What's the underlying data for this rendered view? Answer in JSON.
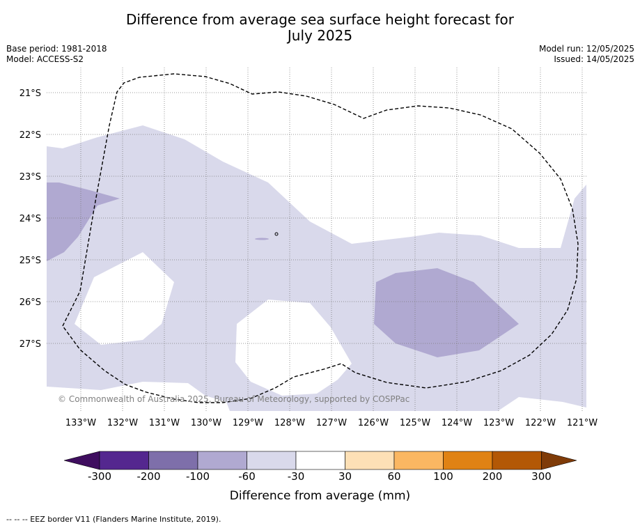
{
  "title_line1": "Difference from average sea surface height forecast for",
  "title_line2": "July 2025",
  "meta": {
    "base_period": "Base period: 1981-2018",
    "model": "Model: ACCESS-S2",
    "model_run": "Model run: 12/05/2025",
    "issued": "Issued: 14/05/2025"
  },
  "map": {
    "lon_labels": [
      "133°W",
      "132°W",
      "131°W",
      "130°W",
      "129°W",
      "128°W",
      "127°W",
      "126°W",
      "125°W",
      "124°W",
      "123°W",
      "122°W",
      "121°W"
    ],
    "lat_labels": [
      "21°S",
      "22°S",
      "23°S",
      "24°S",
      "25°S",
      "26°S",
      "27°S"
    ],
    "copyright": "© Commonwealth of Australia 2025, Bureau of Meteorology, supported by COSPPac",
    "colors": {
      "light_lavender": "#d9d9eb",
      "medium_lavender": "#b0a9d1",
      "eez_border": "#000000"
    }
  },
  "colorbar": {
    "title": "Difference from average (mm)",
    "tick_labels": [
      "-300",
      "-200",
      "-100",
      "-60",
      "-30",
      "30",
      "60",
      "100",
      "200",
      "300"
    ],
    "colors": [
      "#3f0e5f",
      "#54278f",
      "#7e6faa",
      "#b0a9d1",
      "#d9d9eb",
      "#ffffff",
      "#fde0b6",
      "#fbb762",
      "#e08214",
      "#b35806",
      "#7f3b08"
    ]
  },
  "footnote": "--  --  -- EEZ border V11 (Flanders Marine Institute, 2019)."
}
